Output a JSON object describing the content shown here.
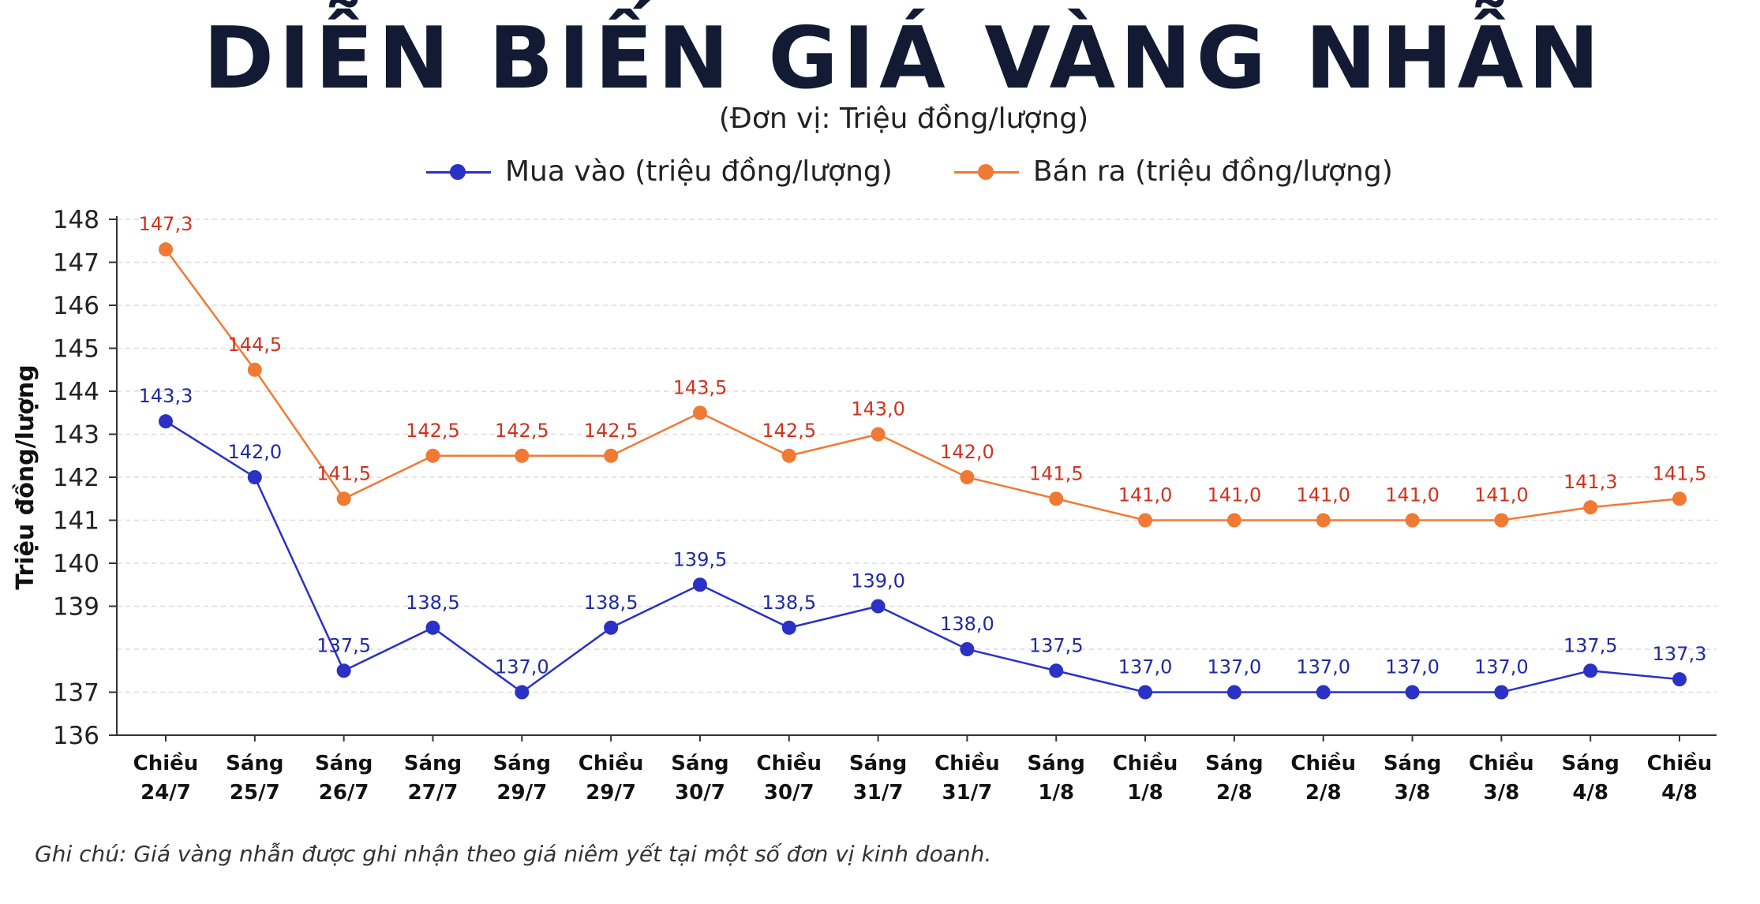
{
  "title": "DIỄN BIẾN GIÁ VÀNG NHẪN",
  "subtitle": "(Đơn vị: Triệu đồng/lượng)",
  "note": "Ghi chú: Giá vàng nhẫn được ghi nhận theo giá niêm yết tại một số đơn vị kinh doanh.",
  "colors": {
    "buy": "#2a31c4",
    "sell": "#f07a34",
    "buy_label": "#1f2aa0",
    "sell_label": "#d0331f"
  },
  "chart_data": {
    "type": "line",
    "ylabel": "Triệu đồng/lượng",
    "xlabel": "",
    "ylim": [
      136,
      148
    ],
    "yticks": [
      "136",
      "137",
      "139",
      "140",
      "141",
      "142",
      "143",
      "144",
      "145",
      "146",
      "147",
      "148"
    ],
    "grid": true,
    "legend_placement": "top",
    "categories": [
      [
        "Chiều",
        "24/7"
      ],
      [
        "Sáng",
        "25/7"
      ],
      [
        "Sáng",
        "26/7"
      ],
      [
        "Sáng",
        "27/7"
      ],
      [
        "Sáng",
        "29/7"
      ],
      [
        "Chiều",
        "29/7"
      ],
      [
        "Sáng",
        "30/7"
      ],
      [
        "Chiều",
        "30/7"
      ],
      [
        "Sáng",
        "31/7"
      ],
      [
        "Chiều",
        "31/7"
      ],
      [
        "Sáng",
        "1/8"
      ],
      [
        "Chiều",
        "1/8"
      ],
      [
        "Sáng",
        "2/8"
      ],
      [
        "Chiều",
        "2/8"
      ],
      [
        "Sáng",
        "3/8"
      ],
      [
        "Chiều",
        "3/8"
      ],
      [
        "Sáng",
        "4/8"
      ],
      [
        "Chiều",
        "4/8"
      ]
    ],
    "series": [
      {
        "name": "Mua vào (triệu đồng/lượng)",
        "color": "#2a31c4",
        "values": [
          143.3,
          142.0,
          137.5,
          138.5,
          137.0,
          138.5,
          139.5,
          138.5,
          139.0,
          138.0,
          137.5,
          137.0,
          137.0,
          137.0,
          137.0,
          137.0,
          137.5,
          137.3
        ],
        "labels": [
          "143,3",
          "142,0",
          "137,5",
          "138,5",
          "137,0",
          "138,5",
          "139,5",
          "138,5",
          "139,0",
          "138,0",
          "137,5",
          "137,0",
          "137,0",
          "137,0",
          "137,0",
          "137,0",
          "137,5",
          "137,3"
        ]
      },
      {
        "name": "Bán ra (triệu đồng/lượng)",
        "color": "#f07a34",
        "values": [
          147.3,
          144.5,
          141.5,
          142.5,
          142.5,
          142.5,
          143.5,
          142.5,
          143.0,
          142.0,
          141.5,
          141.0,
          141.0,
          141.0,
          141.0,
          141.0,
          141.3,
          141.5
        ],
        "labels": [
          "147,3",
          "144,5",
          "141,5",
          "142,5",
          "142,5",
          "142,5",
          "143,5",
          "142,5",
          "143,0",
          "142,0",
          "141,5",
          "141,0",
          "141,0",
          "141,0",
          "141,0",
          "141,0",
          "141,3",
          "141,5"
        ]
      }
    ]
  }
}
